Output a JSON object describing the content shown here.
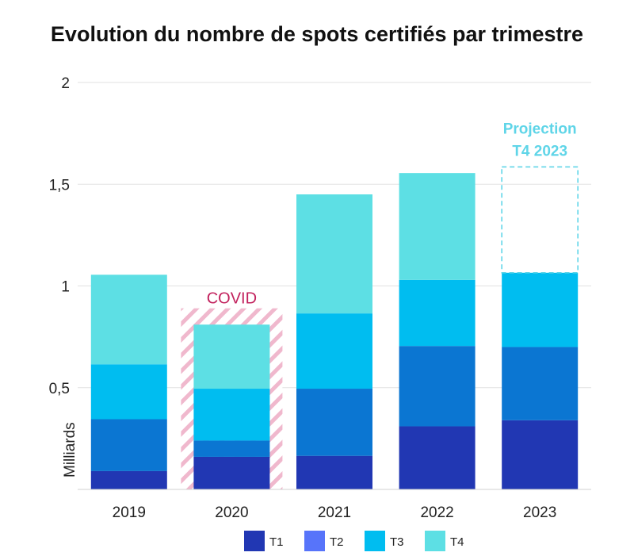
{
  "chart_data": {
    "type": "bar",
    "stacked": true,
    "title": "Evolution du nombre de spots certifiés par trimestre",
    "xlabel": "",
    "ylabel": "Milliards",
    "ylim": [
      0,
      2
    ],
    "yticks": [
      "0,5",
      "1",
      "1,5",
      "2"
    ],
    "grid": true,
    "legend_position": "bottom",
    "categories": [
      "2019",
      "2020",
      "2021",
      "2022",
      "2023"
    ],
    "series": [
      {
        "name": "T1",
        "color": "#2137b3",
        "values": [
          0.09,
          0.16,
          0.165,
          0.31,
          0.34
        ]
      },
      {
        "name": "T2",
        "color": "#0b76d2",
        "legend_color": "#5774fa",
        "values": [
          0.255,
          0.08,
          0.33,
          0.395,
          0.36
        ]
      },
      {
        "name": "T3",
        "color": "#00bdf0",
        "values": [
          0.27,
          0.255,
          0.37,
          0.325,
          0.365
        ]
      },
      {
        "name": "T4",
        "color": "#5ddfe4",
        "values": [
          0.44,
          0.315,
          0.585,
          0.525,
          null
        ]
      }
    ],
    "annotations": {
      "covid": {
        "label": "COVID",
        "category": "2020",
        "top_value": 0.89,
        "color": "#c2215d",
        "hatch_color": "#f0b8cd"
      },
      "projection": {
        "label_line1": "Projection",
        "label_line2": "T4 2023",
        "category": "2023",
        "value": 0.52,
        "color": "#5fd5e8"
      }
    }
  }
}
